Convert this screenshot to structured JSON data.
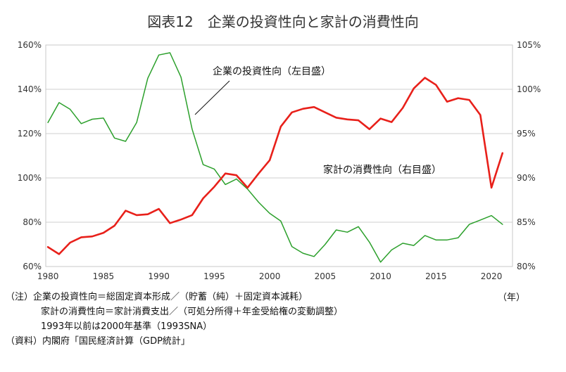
{
  "chart_data": {
    "type": "line",
    "title": "図表12　企業の投資性向と家計の消費性向",
    "x": [
      1980,
      1981,
      1982,
      1983,
      1984,
      1985,
      1986,
      1987,
      1988,
      1989,
      1990,
      1991,
      1992,
      1993,
      1994,
      1995,
      1996,
      1997,
      1998,
      1999,
      2000,
      2001,
      2002,
      2003,
      2004,
      2005,
      2006,
      2007,
      2008,
      2009,
      2010,
      2011,
      2012,
      2013,
      2014,
      2015,
      2016,
      2017,
      2018,
      2019,
      2020,
      2021
    ],
    "xticks": [
      "1980",
      "1985",
      "1990",
      "1995",
      "2000",
      "2005",
      "2010",
      "2015",
      "2020"
    ],
    "xlim": [
      1979.8,
      2021.9
    ],
    "x_unit": "（年）",
    "y_left": {
      "ticks": [
        "60%",
        "80%",
        "100%",
        "120%",
        "140%",
        "160%"
      ],
      "lim": [
        60,
        160
      ]
    },
    "y_right": {
      "ticks": [
        "80%",
        "85%",
        "90%",
        "95%",
        "100%",
        "105%"
      ],
      "lim": [
        80,
        105
      ]
    },
    "series": [
      {
        "name": "企業の投資性向（左目盛）",
        "axis": "left",
        "color": "#2ca02c",
        "values": [
          125,
          134,
          131,
          124.5,
          126.5,
          127,
          118,
          116.5,
          125,
          145,
          155.5,
          156.5,
          145.5,
          122,
          106,
          104,
          97,
          99.5,
          95,
          89,
          84,
          80.5,
          69,
          66,
          64.5,
          70,
          76.5,
          75.5,
          78,
          71,
          62,
          67.5,
          70.5,
          69.5,
          74,
          72,
          72,
          73,
          79,
          81,
          83,
          79
        ]
      },
      {
        "name": "家計の消費性向（右目盛）",
        "axis": "right",
        "color": "#e8201a",
        "values": [
          82.2,
          81.4,
          82.7,
          83.3,
          83.4,
          83.8,
          84.6,
          86.3,
          85.8,
          85.9,
          86.5,
          84.9,
          85.3,
          85.8,
          87.7,
          89.0,
          90.5,
          90.3,
          88.9,
          90.5,
          92.0,
          95.8,
          97.4,
          97.8,
          98.0,
          97.4,
          96.8,
          96.6,
          96.5,
          95.5,
          96.7,
          96.3,
          97.9,
          100.1,
          101.3,
          100.5,
          98.6,
          99.0,
          98.8,
          97.1,
          88.9,
          92.8
        ]
      }
    ]
  },
  "annotations": {
    "invest_label": "企業の投資性向（左目盛）",
    "consume_label": "家計の消費性向（右目盛）"
  },
  "notes": {
    "line1": "（注）企業の投資性向＝総固定資本形成／（貯蓄（純）＋固定資本減耗）",
    "line2": "家計の消費性向＝家計消費支出／（可処分所得＋年金受給権の変動調整）",
    "line3": "1993年以前は2000年基準（1993SNA）",
    "line4": "（資料）内閣府「国民経済計算（GDP統計」"
  }
}
